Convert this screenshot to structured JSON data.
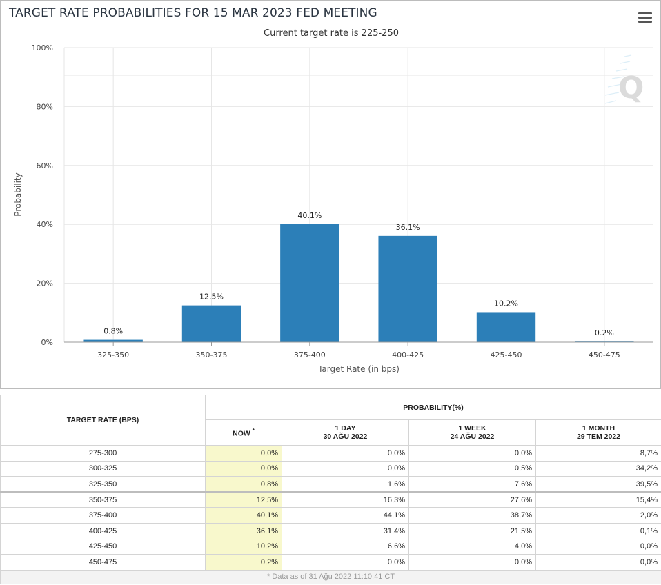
{
  "chart": {
    "title": "TARGET RATE PROBABILITIES FOR 15 MAR 2023 FED MEETING",
    "subtitle": "Current target rate is 225-250",
    "menu_icon": "hamburger-menu-icon",
    "watermark_icon": "q-logo-icon",
    "bar_color": "#2c7fb8"
  },
  "chart_data": {
    "type": "bar",
    "title": "TARGET RATE PROBABILITIES FOR 15 MAR 2023 FED MEETING",
    "subtitle": "Current target rate is 225-250",
    "xlabel": "Target Rate (in bps)",
    "ylabel": "Probability",
    "categories": [
      "325-350",
      "350-375",
      "375-400",
      "400-425",
      "425-450",
      "450-475"
    ],
    "values": [
      0.8,
      12.5,
      40.1,
      36.1,
      10.2,
      0.2
    ],
    "data_labels": [
      "0.8%",
      "12.5%",
      "40.1%",
      "36.1%",
      "10.2%",
      "0.2%"
    ],
    "yticks": [
      "0%",
      "20%",
      "40%",
      "60%",
      "80%",
      "100%"
    ],
    "ylim": [
      0,
      100
    ],
    "grid": true
  },
  "table": {
    "col_rate_header": "TARGET RATE (BPS)",
    "probability_header": "PROBABILITY(%)",
    "now_header": "NOW",
    "now_marker": "*",
    "day_header": "1 DAY",
    "day_date": "30 AĞU 2022",
    "week_header": "1 WEEK",
    "week_date": "24 AĞU 2022",
    "month_header": "1 MONTH",
    "month_date": "29 TEM 2022",
    "rows": [
      {
        "rate": "275-300",
        "now": "0,0%",
        "day": "0,0%",
        "week": "0,0%",
        "month": "8,7%"
      },
      {
        "rate": "300-325",
        "now": "0,0%",
        "day": "0,0%",
        "week": "0,5%",
        "month": "34,2%"
      },
      {
        "rate": "325-350",
        "now": "0,8%",
        "day": "1,6%",
        "week": "7,6%",
        "month": "39,5%"
      },
      {
        "rate": "350-375",
        "now": "12,5%",
        "day": "16,3%",
        "week": "27,6%",
        "month": "15,4%"
      },
      {
        "rate": "375-400",
        "now": "40,1%",
        "day": "44,1%",
        "week": "38,7%",
        "month": "2,0%"
      },
      {
        "rate": "400-425",
        "now": "36,1%",
        "day": "31,4%",
        "week": "21,5%",
        "month": "0,1%"
      },
      {
        "rate": "425-450",
        "now": "10,2%",
        "day": "6,6%",
        "week": "4,0%",
        "month": "0,0%"
      },
      {
        "rate": "450-475",
        "now": "0,2%",
        "day": "0,0%",
        "week": "0,0%",
        "month": "0,0%"
      }
    ],
    "footnote": "* Data as of 31 Ağu 2022 11:10:41 CT"
  }
}
